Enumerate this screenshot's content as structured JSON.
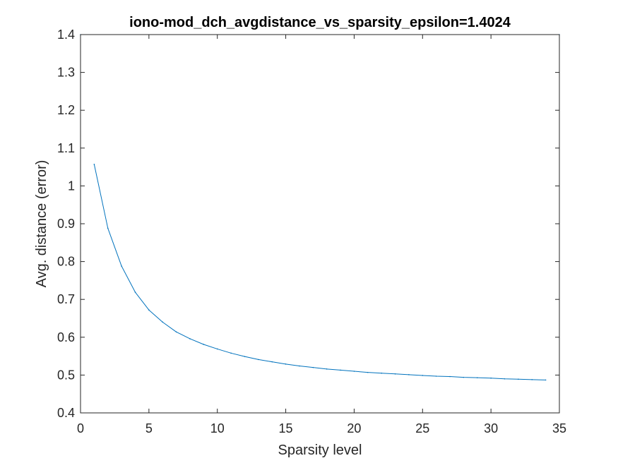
{
  "chart_data": {
    "type": "line",
    "title": "iono-mod_dch_avgdistance_vs_sparsity_epsilon=1.4024",
    "xlabel": "Sparsity level",
    "ylabel": "Avg. distance (error)",
    "xlim": [
      0,
      35
    ],
    "ylim": [
      0.4,
      1.4
    ],
    "xticks": [
      "0",
      "5",
      "10",
      "15",
      "20",
      "25",
      "30",
      "35"
    ],
    "yticks": [
      "0.4",
      "0.5",
      "0.6",
      "0.7",
      "0.8",
      "0.9",
      "1",
      "1.1",
      "1.2",
      "1.3",
      "1.4"
    ],
    "grid": false,
    "box": true,
    "colors": {
      "line": "#0072BD",
      "axes": "#262626",
      "title": "#000000",
      "background": "#ffffff"
    },
    "series": [
      {
        "x": [
          1,
          2,
          3,
          4,
          5,
          6,
          7,
          8,
          9,
          10,
          11,
          12,
          13,
          14,
          15,
          16,
          17,
          18,
          19,
          20,
          21,
          22,
          23,
          24,
          25,
          26,
          27,
          28,
          29,
          30,
          31,
          32,
          33,
          34
        ],
        "y": [
          1.057,
          0.888,
          0.788,
          0.719,
          0.672,
          0.64,
          0.614,
          0.596,
          0.581,
          0.569,
          0.558,
          0.549,
          0.541,
          0.535,
          0.529,
          0.524,
          0.52,
          0.516,
          0.513,
          0.51,
          0.507,
          0.505,
          0.503,
          0.501,
          0.499,
          0.497,
          0.496,
          0.494,
          0.493,
          0.492,
          0.49,
          0.489,
          0.488,
          0.487
        ]
      },
      {
        "x": [
          0,
          35
        ],
        "y": [
          1.4,
          1.4
        ]
      }
    ]
  }
}
